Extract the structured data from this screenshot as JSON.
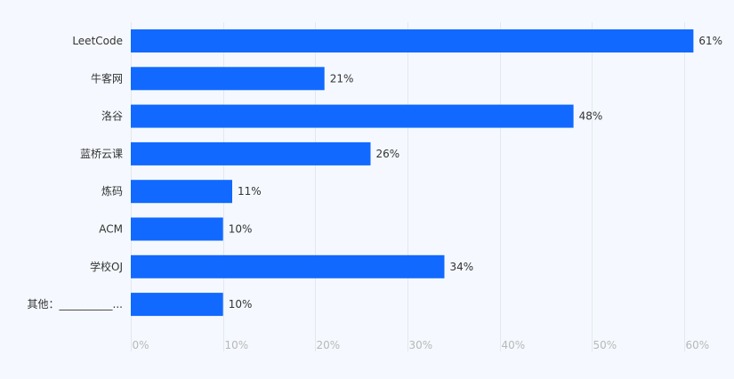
{
  "chart_data": {
    "type": "bar",
    "orientation": "horizontal",
    "title": "",
    "xlabel": "",
    "ylabel": "",
    "categories": [
      "LeetCode",
      "牛客网",
      "洛谷",
      "蓝桥云课",
      "炼码",
      "ACM",
      "学校OJ",
      "其他：__________..."
    ],
    "values": [
      61,
      21,
      48,
      26,
      11,
      10,
      34,
      10
    ],
    "value_labels": [
      "61%",
      "21%",
      "48%",
      "26%",
      "11%",
      "10%",
      "34%",
      "10%"
    ],
    "xlim": [
      0,
      60
    ],
    "x_ticks": [
      0,
      10,
      20,
      30,
      40,
      50,
      60
    ],
    "x_tick_labels": [
      "0%",
      "10%",
      "20%",
      "30%",
      "40%",
      "50%",
      "60%"
    ],
    "grid": true,
    "legend": "none"
  },
  "colors": {
    "bar": "#1169ff",
    "background": "#f5f9ff",
    "grid": "#e3e8ef",
    "text": "#333333",
    "tick_text": "#b8b8b8"
  }
}
